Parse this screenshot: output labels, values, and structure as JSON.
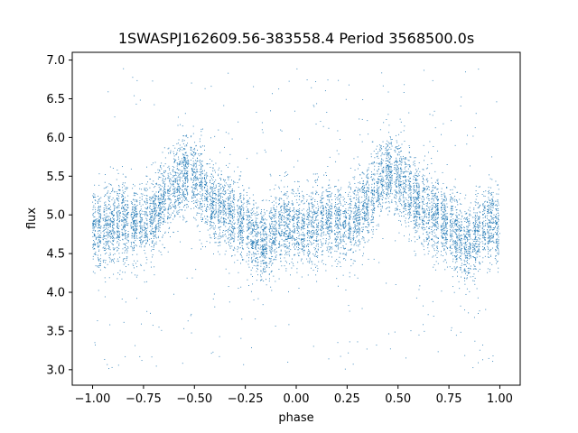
{
  "chart_data": {
    "type": "scatter",
    "title": "1SWASPJ162609.56-383558.4 Period 3568500.0s",
    "xlabel": "phase",
    "ylabel": "flux",
    "xlim": [
      -1.1,
      1.1
    ],
    "ylim": [
      2.8,
      7.1
    ],
    "xticks": [
      -1.0,
      -0.75,
      -0.5,
      -0.25,
      0.0,
      0.25,
      0.5,
      0.75,
      1.0
    ],
    "xtick_labels": [
      "−1.00",
      "−0.75",
      "−0.50",
      "−0.25",
      "0.00",
      "0.25",
      "0.50",
      "0.75",
      "1.00"
    ],
    "yticks": [
      3.0,
      3.5,
      4.0,
      4.5,
      5.0,
      5.5,
      6.0,
      6.5,
      7.0
    ],
    "ytick_labels": [
      "3.0",
      "3.5",
      "4.0",
      "4.5",
      "5.0",
      "5.5",
      "6.0",
      "6.5",
      "7.0"
    ],
    "grid": false,
    "point_color": "#1f77b4",
    "phase_range": [
      -1.0,
      1.0
    ],
    "flux_profile": {
      "phase": [
        0.0,
        0.05,
        0.1,
        0.15,
        0.2,
        0.25,
        0.3,
        0.35,
        0.4,
        0.45,
        0.5,
        0.55,
        0.6,
        0.65,
        0.7,
        0.75,
        0.8,
        0.85,
        0.9,
        0.95,
        1.0
      ],
      "flux": [
        4.85,
        4.8,
        4.9,
        4.95,
        4.85,
        4.9,
        5.0,
        5.2,
        5.35,
        5.55,
        5.5,
        5.3,
        5.15,
        5.05,
        4.95,
        4.85,
        4.7,
        4.6,
        4.8,
        4.9,
        4.85
      ]
    },
    "scatter_sigma": 0.25,
    "outlier_fraction": 0.04,
    "outlier_flux_range": [
      3.0,
      6.9
    ],
    "num_points_displayed": 9000
  }
}
